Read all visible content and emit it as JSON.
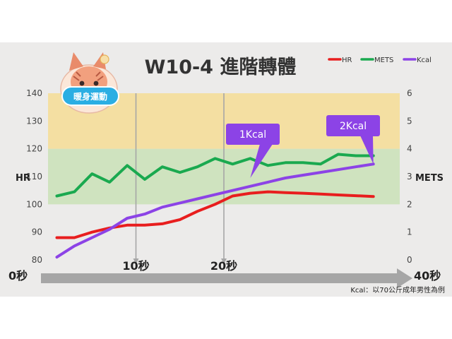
{
  "title": "W10-4  進階轉體",
  "badge": {
    "label": "暖身運動"
  },
  "chart_data": {
    "type": "line",
    "x": [
      1,
      3,
      5,
      7,
      9,
      11,
      13,
      15,
      17,
      19,
      21,
      23,
      25,
      27,
      29,
      31,
      33,
      35,
      37
    ],
    "xlim": [
      0,
      40
    ],
    "y_left": {
      "label": "HR",
      "ylim": [
        80,
        140
      ],
      "ticks": [
        80,
        90,
        100,
        110,
        120,
        130,
        140
      ]
    },
    "y_right": {
      "label": "METS",
      "ylim": [
        0,
        6
      ],
      "ticks": [
        0,
        1,
        2,
        3,
        4,
        5,
        6
      ]
    },
    "zones": [
      {
        "from": 100,
        "to": 120,
        "color": "#cfe3bf"
      },
      {
        "from": 120,
        "to": 140,
        "color": "#f4dfa2"
      }
    ],
    "series": [
      {
        "name": "HR",
        "axis": "left",
        "color": "#e81e1e",
        "values": [
          88,
          88,
          90,
          91.5,
          92.5,
          92.5,
          93,
          94.5,
          97.5,
          100,
          103,
          104,
          104.5,
          104.2,
          104,
          103.7,
          103.4,
          103.1,
          102.8
        ]
      },
      {
        "name": "METS",
        "axis": "right",
        "color": "#1aa94f",
        "values": [
          2.3,
          2.45,
          3.1,
          2.8,
          3.4,
          2.9,
          3.35,
          3.15,
          3.35,
          3.65,
          3.45,
          3.65,
          3.4,
          3.5,
          3.5,
          3.45,
          3.8,
          3.75,
          3.75
        ]
      },
      {
        "name": "Kcal",
        "axis": "right",
        "color": "#8c43e6",
        "values": [
          0.1,
          0.5,
          0.8,
          1.1,
          1.5,
          1.65,
          1.9,
          2.05,
          2.2,
          2.35,
          2.5,
          2.65,
          2.8,
          2.95,
          3.05,
          3.15,
          3.25,
          3.35,
          3.45
        ]
      }
    ],
    "markers": [
      {
        "x": 10,
        "label": "10秒"
      },
      {
        "x": 20,
        "label": "20秒"
      }
    ],
    "annotations": [
      {
        "label": "1Kcal",
        "x": 23,
        "value": 2.95
      },
      {
        "label": "2Kcal",
        "x": 37,
        "value": 3.45
      }
    ],
    "timeline": {
      "start": "0秒",
      "end": "40秒"
    },
    "legend": {
      "placement": "top-right"
    },
    "footnote": "Kcal：以70公斤成年男性為例"
  },
  "colors": {
    "background": "#ecebea",
    "timeline": "#a6a6a6",
    "callout": "#8c43e6",
    "marker": "#a6a6a6",
    "badge": "#2baee3"
  }
}
